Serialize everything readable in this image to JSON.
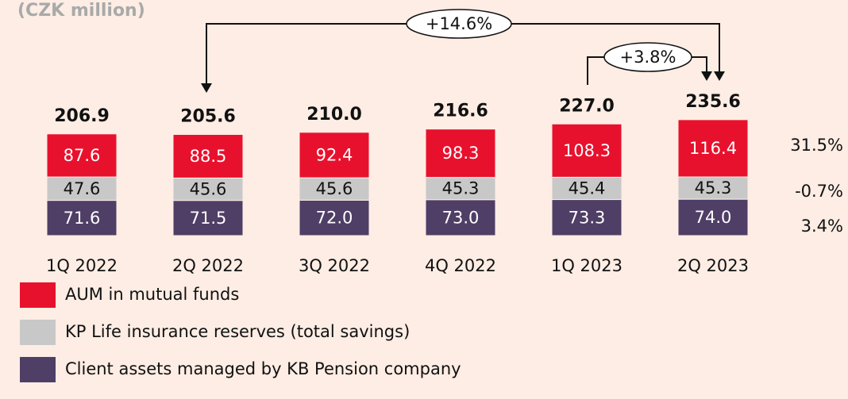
{
  "chart_data": {
    "type": "stacked_bar",
    "title": "(CZK million)",
    "categories": [
      "1Q 2022",
      "2Q 2022",
      "3Q 2022",
      "4Q 2022",
      "1Q 2023",
      "2Q 2023"
    ],
    "series": [
      {
        "name": "Client assets managed by KB Pension company",
        "color": "#4f3e66",
        "values": [
          71.6,
          71.5,
          72,
          73,
          73.3,
          74
        ],
        "value_labels": [
          "71.6",
          "71.5",
          "72.0",
          "73.0",
          "73.3",
          "74.0"
        ],
        "change_label": "3.4%"
      },
      {
        "name": "KP Life insurance reserves (total savings)",
        "color": "#c8c8c8",
        "values": [
          47.6,
          45.6,
          45.6,
          45.3,
          45.4,
          45.3
        ],
        "value_labels": [
          "47.6",
          "45.6",
          "45.6",
          "45.3",
          "45.4",
          "45.3"
        ],
        "change_label": "-0.7%"
      },
      {
        "name": "AUM in mutual funds",
        "color": "#e8112d",
        "values": [
          87.6,
          88.5,
          92.4,
          98.3,
          108.3,
          116.4
        ],
        "value_labels": [
          "87.6",
          "88.5",
          "92.4",
          "98.3",
          "108.3",
          "116.4"
        ],
        "change_label": "31.5%"
      }
    ],
    "totals": [
      206.9,
      205.6,
      210,
      216.6,
      227,
      235.6
    ],
    "total_labels": [
      "206.9",
      "205.6",
      "210.0",
      "216.6",
      "227.0",
      "235.6"
    ],
    "annotations": [
      "+14.6%",
      "+3.8%"
    ]
  }
}
